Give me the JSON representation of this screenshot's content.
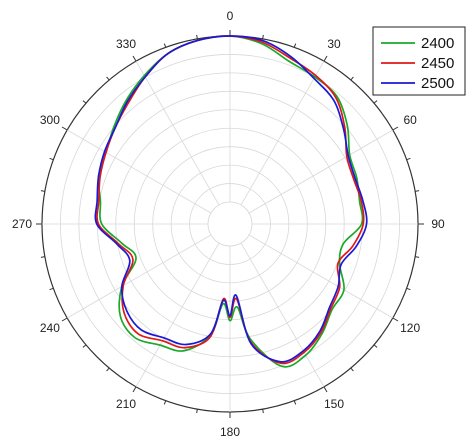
{
  "chart_data": {
    "type": "line",
    "subtype": "polar",
    "title": "",
    "angle_unit": "degrees",
    "angle_direction": "clockwise",
    "zero_location": "top",
    "angle_tick_labels": [
      "0",
      "30",
      "60",
      "90",
      "120",
      "150",
      "180",
      "210",
      "240",
      "270",
      "300",
      "330"
    ],
    "angle_tick_values": [
      0,
      30,
      60,
      90,
      120,
      150,
      180,
      210,
      240,
      270,
      300,
      330
    ],
    "radial_range": [
      0,
      1
    ],
    "radial_tick_labels_shown": false,
    "grid": true,
    "legend_position": "top-right",
    "theta": [
      0,
      10,
      20,
      30,
      40,
      50,
      60,
      70,
      80,
      90,
      100,
      110,
      120,
      130,
      140,
      150,
      160,
      170,
      175,
      180,
      185,
      190,
      200,
      210,
      220,
      230,
      240,
      250,
      260,
      270,
      280,
      290,
      300,
      310,
      320,
      330,
      340,
      350
    ],
    "series": [
      {
        "name": "2400",
        "color": "#1aaa2a",
        "values": [
          1.0,
          0.97,
          0.91,
          0.89,
          0.87,
          0.79,
          0.7,
          0.68,
          0.66,
          0.66,
          0.56,
          0.57,
          0.66,
          0.67,
          0.73,
          0.78,
          0.78,
          0.57,
          0.37,
          0.45,
          0.35,
          0.55,
          0.68,
          0.71,
          0.76,
          0.73,
          0.62,
          0.47,
          0.53,
          0.64,
          0.66,
          0.71,
          0.73,
          0.78,
          0.84,
          0.9,
          0.96,
          0.99
        ]
      },
      {
        "name": "2450",
        "color": "#e01818",
        "values": [
          1.0,
          0.98,
          0.93,
          0.9,
          0.86,
          0.77,
          0.68,
          0.66,
          0.67,
          0.67,
          0.62,
          0.56,
          0.63,
          0.66,
          0.72,
          0.76,
          0.76,
          0.59,
          0.32,
          0.43,
          0.32,
          0.56,
          0.66,
          0.68,
          0.73,
          0.7,
          0.61,
          0.49,
          0.55,
          0.66,
          0.67,
          0.7,
          0.73,
          0.77,
          0.82,
          0.89,
          0.96,
          0.99
        ]
      },
      {
        "name": "2500",
        "color": "#1a1ad6",
        "values": [
          1.0,
          0.99,
          0.94,
          0.88,
          0.84,
          0.76,
          0.69,
          0.67,
          0.68,
          0.69,
          0.64,
          0.58,
          0.62,
          0.65,
          0.71,
          0.75,
          0.75,
          0.6,
          0.3,
          0.42,
          0.33,
          0.54,
          0.64,
          0.66,
          0.7,
          0.68,
          0.62,
          0.51,
          0.56,
          0.67,
          0.68,
          0.71,
          0.74,
          0.77,
          0.83,
          0.89,
          0.96,
          0.99
        ]
      }
    ]
  }
}
